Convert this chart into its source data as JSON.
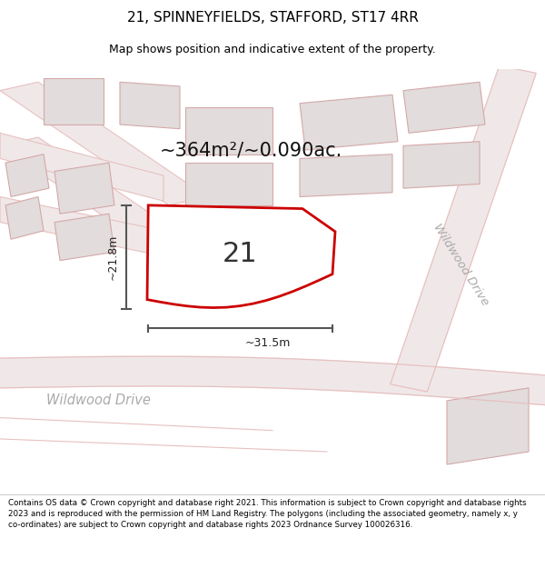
{
  "title": "21, SPINNEYFIELDS, STAFFORD, ST17 4RR",
  "subtitle": "Map shows position and indicative extent of the property.",
  "area_label": "~364m²/~0.090ac.",
  "plot_number": "21",
  "width_label": "~31.5m",
  "height_label": "~21.8m",
  "road_label_bottom": "Wildwood Drive",
  "road_label_right": "Wildwood Drive",
  "footer": "Contains OS data © Crown copyright and database right 2021. This information is subject to Crown copyright and database rights 2023 and is reproduced with the permission of HM Land Registry. The polygons (including the associated geometry, namely x, y co-ordinates) are subject to Crown copyright and database rights 2023 Ordnance Survey 100026316.",
  "bg_color": "#f8f6f6",
  "road_color": "#e8c0c0",
  "building_color": "#e2dcdc",
  "building_edge": "#d4a8a8",
  "plot_outline_color": "#cc0000",
  "dim_color": "#555555",
  "title_color": "#000000",
  "footer_color": "#000000",
  "road_fill": "#f0e8e8",
  "road_label_color": "#aaaaaa",
  "area_label_fontsize": 15,
  "plot_number_fontsize": 22,
  "title_fontsize": 11,
  "subtitle_fontsize": 9
}
